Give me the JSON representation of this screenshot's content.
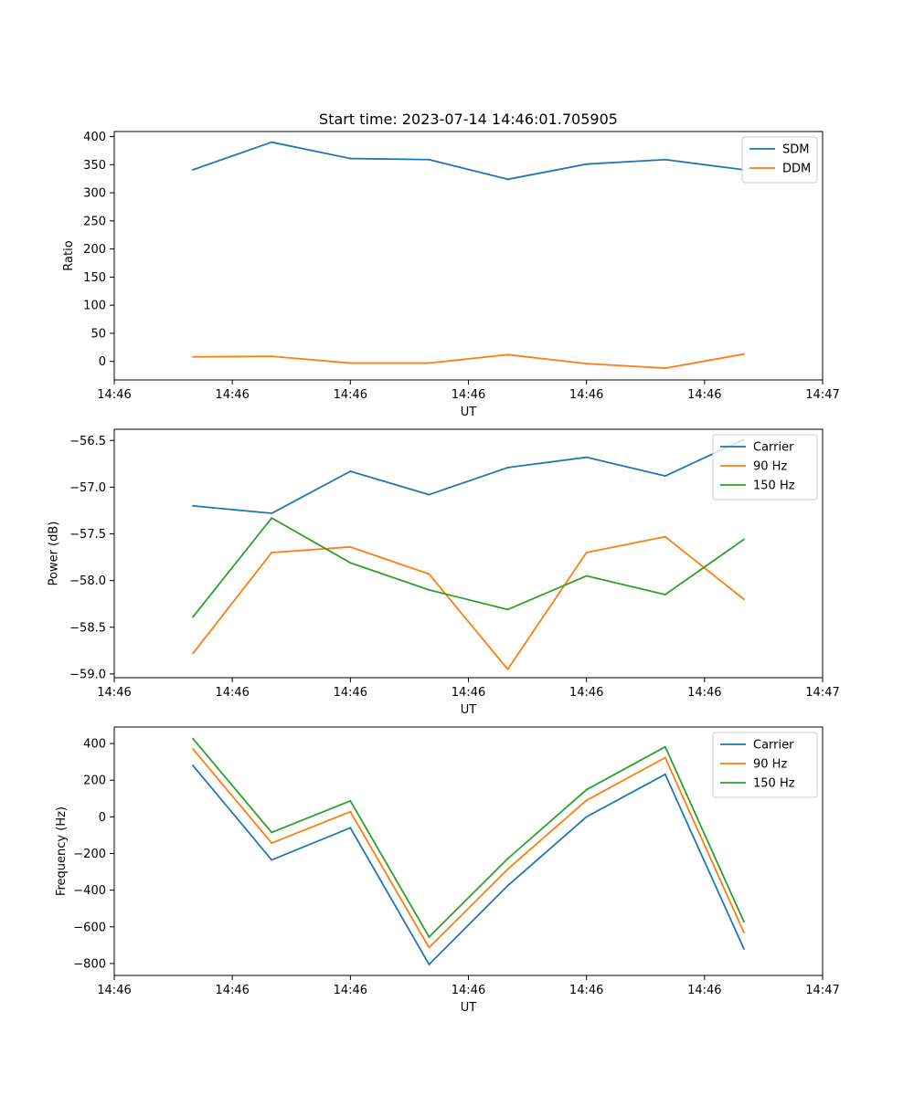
{
  "chart_data": [
    {
      "type": "line",
      "title": "Start time: 2023-07-14 14:46:01.705905",
      "xlabel": "UT",
      "ylabel": "Ratio",
      "xlim": [
        0,
        9
      ],
      "ylim": [
        -33,
        409
      ],
      "x": [
        1,
        2,
        3,
        4,
        5,
        6,
        7,
        8
      ],
      "xticks": [
        0,
        1.5,
        3,
        4.5,
        6,
        7.5,
        9
      ],
      "xtick_labels": [
        "14:46",
        "14:46",
        "14:46",
        "14:46",
        "14:46",
        "14:46",
        "14:47"
      ],
      "yticks": [
        0,
        50,
        100,
        150,
        200,
        250,
        300,
        350,
        400
      ],
      "ytick_labels": [
        "0",
        "50",
        "100",
        "150",
        "200",
        "250",
        "300",
        "350",
        "400"
      ],
      "legend_position": "top-right",
      "series": [
        {
          "name": "SDM",
          "color": "#1f77b4",
          "values": [
            341,
            390,
            361,
            359,
            324,
            351,
            359,
            341
          ]
        },
        {
          "name": "DDM",
          "color": "#ff7f0e",
          "values": [
            8,
            9,
            -3,
            -3,
            12,
            -4,
            -12,
            13
          ]
        }
      ]
    },
    {
      "type": "line",
      "title": "",
      "xlabel": "UT",
      "ylabel": "Power (dB)",
      "xlim": [
        0,
        9
      ],
      "ylim": [
        -59.04,
        -56.38
      ],
      "x": [
        1,
        2,
        3,
        4,
        5,
        6,
        7,
        8
      ],
      "xticks": [
        0,
        1.5,
        3,
        4.5,
        6,
        7.5,
        9
      ],
      "xtick_labels": [
        "14:46",
        "14:46",
        "14:46",
        "14:46",
        "14:46",
        "14:46",
        "14:47"
      ],
      "yticks": [
        -59.0,
        -58.5,
        -58.0,
        -57.5,
        -57.0,
        -56.5
      ],
      "ytick_labels": [
        "−59.0",
        "−58.5",
        "−58.0",
        "−57.5",
        "−57.0",
        "−56.5"
      ],
      "legend_position": "top-right",
      "series": [
        {
          "name": "Carrier",
          "color": "#1f77b4",
          "values": [
            -57.2,
            -57.28,
            -56.83,
            -57.08,
            -56.79,
            -56.68,
            -56.88,
            -56.49
          ]
        },
        {
          "name": "90 Hz",
          "color": "#ff7f0e",
          "values": [
            -58.78,
            -57.7,
            -57.64,
            -57.93,
            -58.95,
            -57.7,
            -57.53,
            -58.2
          ]
        },
        {
          "name": "150 Hz",
          "color": "#2ca02c",
          "values": [
            -58.39,
            -57.33,
            -57.81,
            -58.1,
            -58.31,
            -57.95,
            -58.15,
            -57.56
          ]
        }
      ]
    },
    {
      "type": "line",
      "title": "",
      "xlabel": "UT",
      "ylabel": "Frequency (Hz)",
      "xlim": [
        0,
        9
      ],
      "ylim": [
        -865,
        490
      ],
      "x": [
        1,
        2,
        3,
        4,
        5,
        6,
        7,
        8
      ],
      "xticks": [
        0,
        1.5,
        3,
        4.5,
        6,
        7.5,
        9
      ],
      "xtick_labels": [
        "14:46",
        "14:46",
        "14:46",
        "14:46",
        "14:46",
        "14:46",
        "14:47"
      ],
      "yticks": [
        -800,
        -600,
        -400,
        -200,
        0,
        200,
        400
      ],
      "ytick_labels": [
        "−800",
        "−600",
        "−400",
        "−200",
        "0",
        "200",
        "400"
      ],
      "legend_position": "top-right",
      "series": [
        {
          "name": "Carrier",
          "color": "#1f77b4",
          "values": [
            280,
            -235,
            -60,
            -805,
            -375,
            0,
            232,
            -720
          ]
        },
        {
          "name": "90 Hz",
          "color": "#ff7f0e",
          "values": [
            370,
            -143,
            28,
            -713,
            -285,
            90,
            323,
            -630
          ]
        },
        {
          "name": "150 Hz",
          "color": "#2ca02c",
          "values": [
            427,
            -85,
            87,
            -655,
            -228,
            148,
            382,
            -572
          ]
        }
      ]
    }
  ]
}
